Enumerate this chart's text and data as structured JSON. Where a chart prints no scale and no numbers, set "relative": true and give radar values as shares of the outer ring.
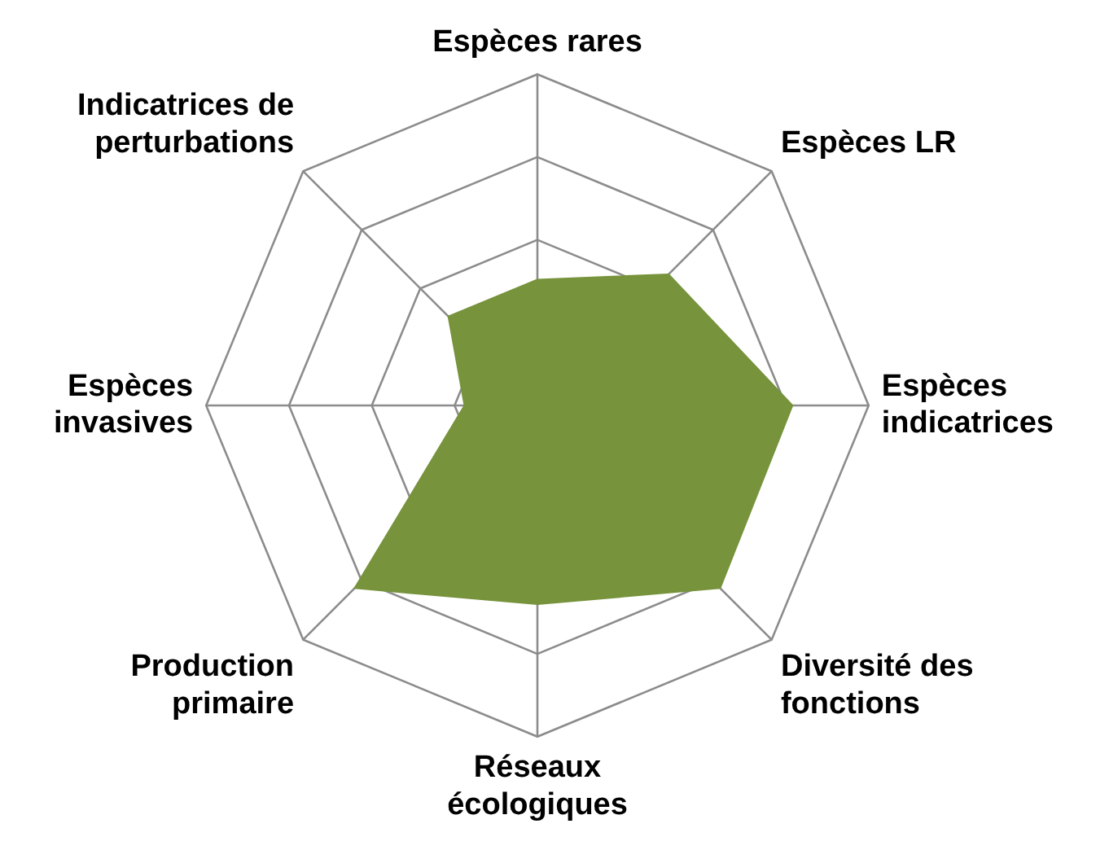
{
  "chart_data": {
    "type": "radar",
    "relative": true,
    "legend": false,
    "marker": "none",
    "categories": [
      "Espèces rares",
      "Espèces LR",
      "Espèces indicatrices",
      "Diversité des fonctions",
      "Réseaux écologiques",
      "Production primaire",
      "Espèces invasives",
      "Indicatrices de perturbations"
    ],
    "series": [
      {
        "color": "#77933c",
        "values": [
          0.38,
          0.56,
          0.77,
          0.78,
          0.6,
          0.78,
          0.22,
          0.38
        ]
      }
    ]
  }
}
